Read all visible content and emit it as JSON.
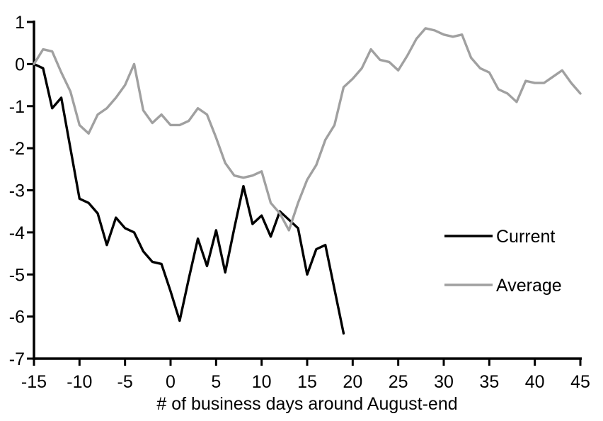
{
  "chart_data": {
    "type": "line",
    "title": "",
    "xlabel": "# of business days around August-end",
    "ylabel": "",
    "xlim": [
      -15,
      45
    ],
    "ylim": [
      -7,
      1
    ],
    "x_ticks": [
      -15,
      -10,
      -5,
      0,
      5,
      10,
      15,
      20,
      25,
      30,
      35,
      40,
      45
    ],
    "y_ticks": [
      1,
      0,
      -1,
      -2,
      -3,
      -4,
      -5,
      -6,
      -7
    ],
    "grid": false,
    "legend_position": "middle-right",
    "axis_color": "#000000",
    "series": [
      {
        "name": "Current",
        "color": "#000000",
        "x_start": -15,
        "values": [
          0,
          -0.1,
          -1.05,
          -0.8,
          -2.0,
          -3.2,
          -3.3,
          -3.55,
          -4.3,
          -3.65,
          -3.9,
          -4.0,
          -4.45,
          -4.7,
          -4.75,
          -5.4,
          -6.1,
          -5.1,
          -4.15,
          -4.8,
          -3.95,
          -4.95,
          -3.9,
          -2.9,
          -3.8,
          -3.6,
          -4.1,
          -3.5,
          -3.7,
          -3.9,
          -5.0,
          -4.4,
          -4.3,
          -5.35,
          -6.4
        ]
      },
      {
        "name": "Average",
        "color": "#a0a0a0",
        "x_start": -15,
        "values": [
          0,
          0.35,
          0.3,
          -0.2,
          -0.65,
          -1.45,
          -1.65,
          -1.2,
          -1.05,
          -0.8,
          -0.5,
          0,
          -1.1,
          -1.4,
          -1.2,
          -1.45,
          -1.45,
          -1.35,
          -1.05,
          -1.2,
          -1.75,
          -2.35,
          -2.65,
          -2.7,
          -2.65,
          -2.55,
          -3.3,
          -3.55,
          -3.95,
          -3.3,
          -2.75,
          -2.4,
          -1.8,
          -1.45,
          -0.55,
          -0.35,
          -0.1,
          0.35,
          0.1,
          0.05,
          -0.15,
          0.2,
          0.6,
          0.85,
          0.8,
          0.7,
          0.65,
          0.7,
          0.15,
          -0.1,
          -0.2,
          -0.6,
          -0.7,
          -0.9,
          -0.4,
          -0.45,
          -0.45,
          -0.3,
          -0.15,
          -0.45,
          -0.7
        ]
      }
    ]
  }
}
